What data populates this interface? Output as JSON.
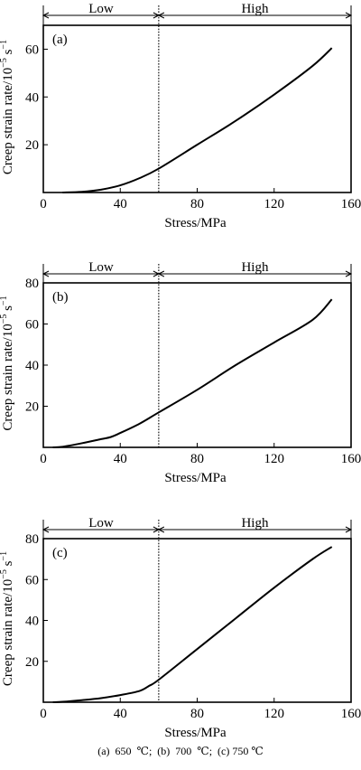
{
  "caption": "(a) 650 ℃; (b) 700 ℃; (c) 750 ℃",
  "chart_data": [
    {
      "type": "line",
      "panel_label": "(a)",
      "xlabel": "Stress/MPa",
      "ylabel": "Creep strain rate/10",
      "ylabel_exp": "−5",
      "ylabel_unit": " s",
      "ylabel_unit_exp": "−1",
      "xlim": [
        0,
        160
      ],
      "ylim": [
        0,
        70
      ],
      "xticks": [
        0,
        40,
        80,
        120,
        160
      ],
      "yticks": [
        20,
        40,
        60
      ],
      "divider_x": 60,
      "regions": [
        {
          "label": "Low",
          "from": 0,
          "to": 60
        },
        {
          "label": "High",
          "from": 60,
          "to": 160
        }
      ],
      "series": [
        {
          "x": [
            10,
            20,
            30,
            40,
            50,
            60,
            80,
            100,
            120,
            140,
            150
          ],
          "y": [
            0,
            0.3,
            1.2,
            3,
            6,
            10,
            20,
            30,
            41,
            53,
            60.5
          ]
        }
      ]
    },
    {
      "type": "line",
      "panel_label": "(b)",
      "xlabel": "Stress/MPa",
      "ylabel": "Creep strain rate/10",
      "ylabel_exp": "−5",
      "ylabel_unit": " s",
      "ylabel_unit_exp": "−1",
      "xlim": [
        0,
        160
      ],
      "ylim": [
        0,
        80
      ],
      "xticks": [
        0,
        40,
        80,
        120,
        160
      ],
      "yticks": [
        20,
        40,
        60,
        80
      ],
      "divider_x": 60,
      "regions": [
        {
          "label": "Low",
          "from": 0,
          "to": 60
        },
        {
          "label": "High",
          "from": 60,
          "to": 160
        }
      ],
      "series": [
        {
          "x": [
            5,
            10,
            20,
            30,
            35,
            40,
            50,
            60,
            80,
            100,
            120,
            140,
            150
          ],
          "y": [
            0,
            0.3,
            2,
            4,
            5,
            7,
            11.5,
            17,
            28,
            40,
            51,
            62,
            72
          ]
        }
      ]
    },
    {
      "type": "line",
      "panel_label": "(c)",
      "xlabel": "Stress/MPa",
      "ylabel": "Creep strain rate/10",
      "ylabel_exp": "−5",
      "ylabel_unit": " s",
      "ylabel_unit_exp": "−1",
      "xlim": [
        0,
        160
      ],
      "ylim": [
        0,
        80
      ],
      "xticks": [
        0,
        40,
        80,
        120,
        160
      ],
      "yticks": [
        20,
        40,
        60,
        80
      ],
      "divider_x": 60,
      "regions": [
        {
          "label": "Low",
          "from": 0,
          "to": 60
        },
        {
          "label": "High",
          "from": 60,
          "to": 160
        }
      ],
      "series": [
        {
          "x": [
            5,
            10,
            20,
            30,
            40,
            50,
            55,
            60,
            80,
            100,
            120,
            140,
            150
          ],
          "y": [
            0,
            0.2,
            1,
            2,
            3.5,
            5.5,
            8,
            11,
            26,
            41,
            56,
            70,
            76
          ]
        }
      ]
    }
  ]
}
